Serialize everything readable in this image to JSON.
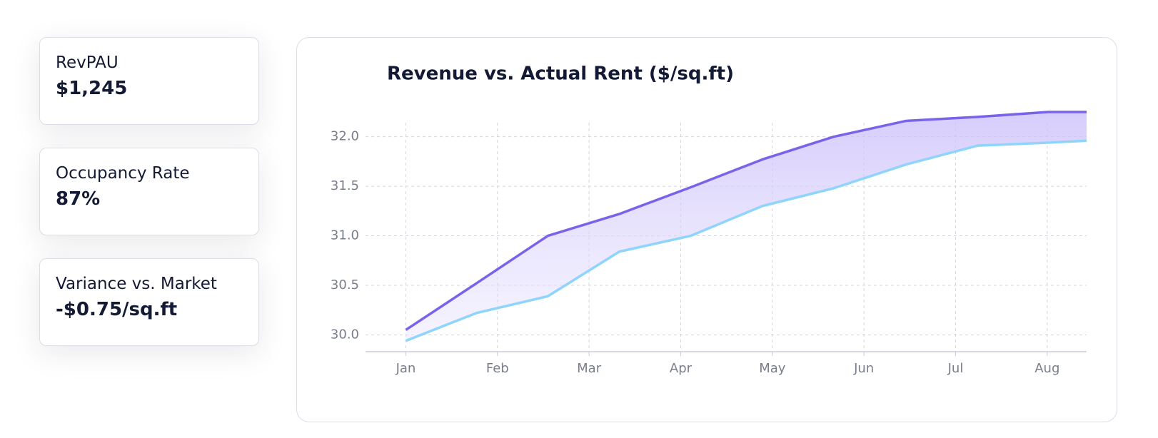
{
  "cards": [
    {
      "label": "RevPAU",
      "value": "$1,245"
    },
    {
      "label": "Occupancy Rate",
      "value": "87%"
    },
    {
      "label": "Variance vs. Market",
      "value": "-$0.75/sq.ft"
    }
  ],
  "chart_data": {
    "type": "line",
    "title": "Revenue vs. Actual Rent ($/sq.ft)",
    "x": [
      0,
      0.77,
      1.55,
      2.33,
      3.11,
      3.89,
      4.67,
      5.46,
      6.24,
      7.01,
      7.43
    ],
    "xlim": [
      -0.44,
      7.43
    ],
    "xticks": [
      {
        "value": 0,
        "label": "Jan"
      },
      {
        "value": 1,
        "label": "Feb"
      },
      {
        "value": 2,
        "label": "Mar"
      },
      {
        "value": 3,
        "label": "Apr"
      },
      {
        "value": 4,
        "label": "May"
      },
      {
        "value": 5,
        "label": "Jun"
      },
      {
        "value": 6,
        "label": "Jul"
      },
      {
        "value": 7,
        "label": "Aug"
      }
    ],
    "ylim": [
      29.83,
      32.3
    ],
    "yticks": [
      {
        "value": 30,
        "label": "30.0"
      },
      30.5,
      {
        "value": 31,
        "label": "31.0"
      },
      31.5,
      {
        "value": 32,
        "label": "32.0"
      }
    ],
    "grid": true,
    "fill_between": true,
    "series": [
      {
        "color": "#7b62ea",
        "values": [
          30.05,
          30.52,
          31.0,
          31.22,
          31.49,
          31.77,
          32.0,
          32.16,
          32.2,
          32.25,
          32.25
        ]
      },
      {
        "color": "#8ed4fb",
        "values": [
          29.94,
          30.22,
          30.39,
          30.84,
          31.0,
          31.3,
          31.48,
          31.72,
          31.91,
          31.94,
          31.96
        ]
      }
    ]
  }
}
